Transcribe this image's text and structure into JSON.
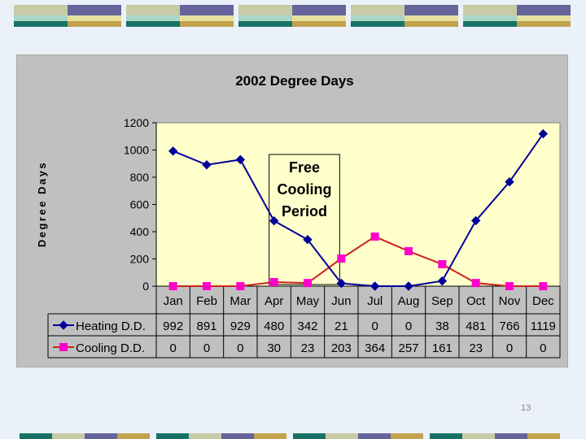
{
  "page": {
    "number": "13"
  },
  "colors": {
    "tile_colors": [
      "#c9cba6",
      "#65649b",
      "#a9d6c6",
      "#e7df9c",
      "#177266",
      "#c2a24e"
    ],
    "chart_background": "#c0c0c0",
    "plot_background": "#ffffcc",
    "heating": "#000099",
    "cooling": "#cc2222",
    "cooling_marker": "#ff00cc"
  },
  "chart_data": {
    "type": "line",
    "title": "2002 Degree Days",
    "ylabel": "Degree Days",
    "xlabel": "",
    "ylim": [
      0,
      1200
    ],
    "yticks": [
      0,
      200,
      400,
      600,
      800,
      1000,
      1200
    ],
    "grid": false,
    "legend": "data-table",
    "categories": [
      "Jan",
      "Feb",
      "Mar",
      "Apr",
      "May",
      "Jun",
      "Jul",
      "Aug",
      "Sep",
      "Oct",
      "Nov",
      "Dec"
    ],
    "series": [
      {
        "name": "Heating D.D.",
        "marker": "diamond",
        "values": [
          992,
          891,
          929,
          480,
          342,
          21,
          0,
          0,
          38,
          481,
          766,
          1119
        ]
      },
      {
        "name": "Cooling D.D.",
        "marker": "square",
        "values": [
          0,
          0,
          0,
          30,
          23,
          203,
          364,
          257,
          161,
          23,
          0,
          0
        ]
      }
    ],
    "annotation": {
      "lines": [
        "Free",
        "Cooling",
        "Period"
      ],
      "x_range": [
        "Apr",
        "Jun"
      ]
    }
  }
}
